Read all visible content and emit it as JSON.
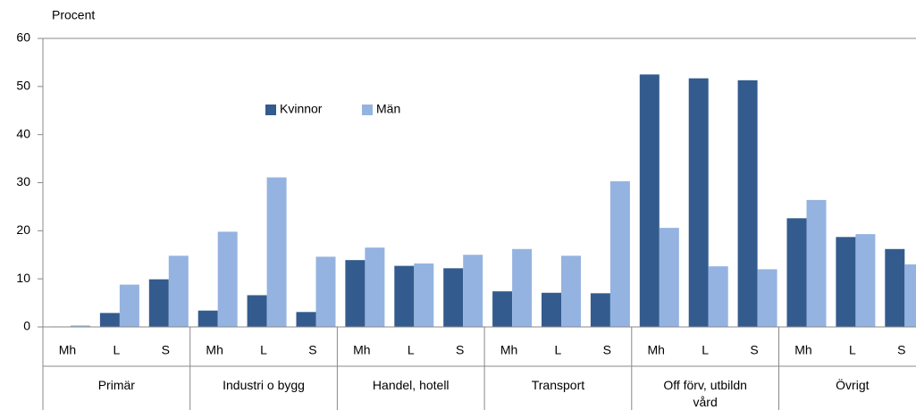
{
  "chart_data": {
    "type": "bar",
    "y_label": "Procent",
    "categories": [
      "Mh",
      "L",
      "S",
      "Mh",
      "L",
      "S",
      "Mh",
      "L",
      "S",
      "Mh",
      "L",
      "S",
      "Mh",
      "L",
      "S",
      "Mh",
      "L",
      "S"
    ],
    "groups": [
      "Primär",
      "Industri o bygg",
      "Handel, hotell",
      "Transport",
      "Off förv, utbildn vård",
      "Övrigt"
    ],
    "series": [
      {
        "name": "Kvinnor",
        "color": "#335b8e",
        "values": [
          0.1,
          2.9,
          9.9,
          3.4,
          6.6,
          3.1,
          13.9,
          12.7,
          12.2,
          7.4,
          7.1,
          7.0,
          52.5,
          51.7,
          51.3,
          22.6,
          18.7,
          16.2
        ]
      },
      {
        "name": "Män",
        "color": "#95b3e0",
        "values": [
          0.3,
          8.8,
          14.8,
          19.8,
          31.1,
          14.6,
          16.5,
          13.2,
          15.0,
          16.2,
          14.8,
          30.3,
          20.6,
          12.6,
          12.0,
          26.4,
          19.3,
          13.0
        ]
      }
    ],
    "ylim": [
      0,
      60
    ],
    "yticks": [
      0,
      10,
      20,
      30,
      40,
      50,
      60
    ],
    "grid": false,
    "legend": "top-center"
  }
}
